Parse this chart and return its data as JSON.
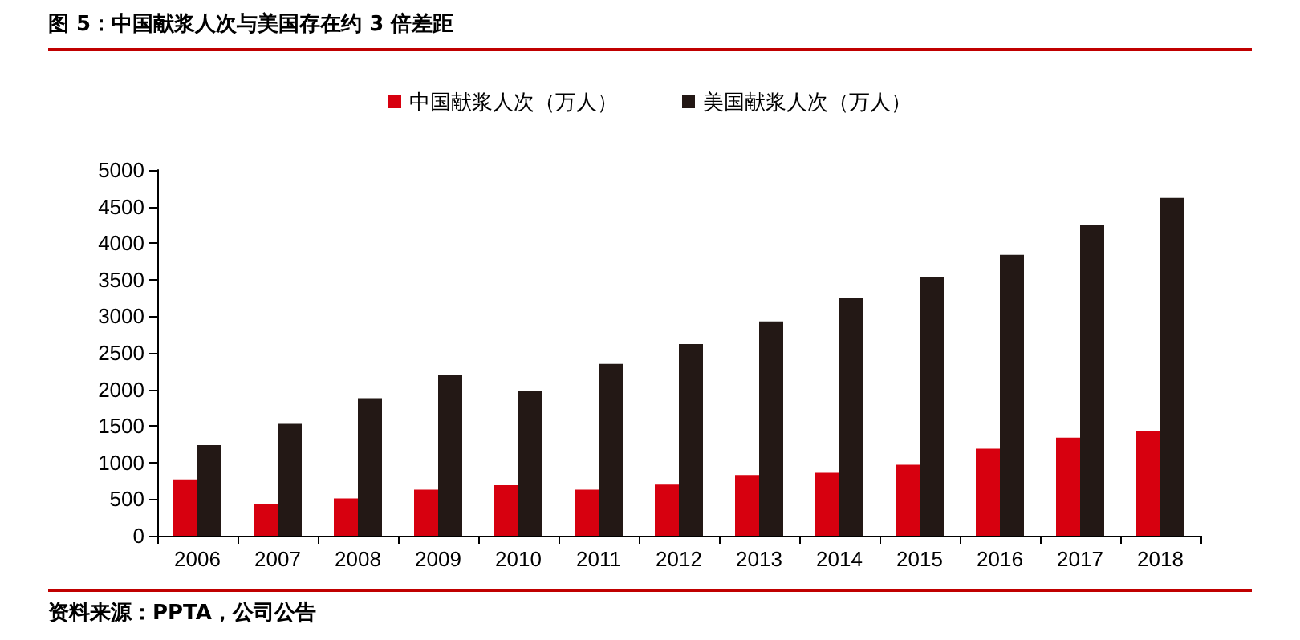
{
  "chart_data": {
    "type": "bar",
    "title": "图 5：中国献浆人次与美国存在约 3 倍差距",
    "categories": [
      "2006",
      "2007",
      "2008",
      "2009",
      "2010",
      "2011",
      "2012",
      "2013",
      "2014",
      "2015",
      "2016",
      "2017",
      "2018"
    ],
    "series": [
      {
        "name": "中国献浆人次（万人）",
        "color": "#d7000f",
        "values": [
          770,
          430,
          510,
          630,
          690,
          630,
          700,
          830,
          860,
          970,
          1190,
          1340,
          1430
        ]
      },
      {
        "name": "美国献浆人次（万人）",
        "color": "#231815",
        "values": [
          1240,
          1530,
          1880,
          2200,
          1980,
          2350,
          2620,
          2930,
          3250,
          3540,
          3840,
          4250,
          4620
        ]
      }
    ],
    "ylim": [
      0,
      5000
    ],
    "yticks": [
      0,
      500,
      1000,
      1500,
      2000,
      2500,
      3000,
      3500,
      4000,
      4500,
      5000
    ],
    "grid": false,
    "legend": "top",
    "annotations": [
      "资料来源：PPTA，公司公告"
    ]
  }
}
